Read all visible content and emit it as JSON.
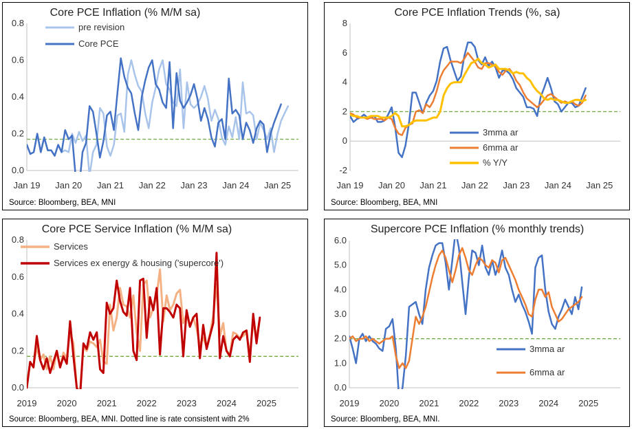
{
  "chart_data": [
    {
      "type": "line",
      "title": "Core PCE Inflation (% M/M sa)",
      "source": "Source: Bloomberg, BEA, MNI",
      "ylim": [
        0,
        0.8
      ],
      "yticks": [
        "0.0",
        "0.2",
        "0.4",
        "0.6",
        "0.8"
      ],
      "xlim": [
        2019.0,
        2025.5
      ],
      "xticks": [
        {
          "v": 2019.0,
          "label": "Jan 19"
        },
        {
          "v": 2020.0,
          "label": "Jan 20"
        },
        {
          "v": 2021.0,
          "label": "Jan 21"
        },
        {
          "v": 2022.0,
          "label": "Jan 22"
        },
        {
          "v": 2023.0,
          "label": "Jan 23"
        },
        {
          "v": 2024.0,
          "label": "Jan 24"
        },
        {
          "v": 2025.0,
          "label": "Jan 25"
        }
      ],
      "reference_line": 0.17,
      "legend": [
        "pre revision",
        "Core PCE"
      ],
      "series": [
        {
          "name": "pre revision",
          "color": "#a9c4eb",
          "width": 2.5,
          "start": 2019.0,
          "step": 0.08333,
          "values": [
            0.14,
            0.09,
            0.1,
            0.2,
            0.1,
            0.18,
            0.11,
            0.11,
            0.08,
            0.14,
            0.1,
            0.11,
            0.1,
            0.2,
            0.15,
            0.21,
            0.16,
            0.19,
            -0.03,
            0.1,
            0.14,
            0.34,
            0.31,
            0.13,
            0.08,
            0.14,
            0.3,
            0.31,
            0.21,
            0.52,
            0.6,
            0.52,
            0.46,
            0.43,
            0.31,
            0.23,
            0.37,
            0.45,
            0.55,
            0.6,
            0.47,
            0.44,
            0.37,
            0.35,
            0.55,
            0.23,
            0.48,
            0.36,
            0.34,
            0.36,
            0.4,
            0.46,
            0.39,
            0.27,
            0.33,
            0.28,
            0.18,
            0.14,
            0.24,
            0.18,
            0.29,
            0.17,
            0.48,
            0.31,
            0.32,
            0.3,
            0.17,
            0.26,
            0.22,
            0.17,
            0.23,
            0.1,
            0.2,
            0.27,
            0.31,
            0.35
          ]
        },
        {
          "name": "Core PCE",
          "color": "#4472c4",
          "width": 2.5,
          "start": 2019.0,
          "step": 0.08333,
          "values": [
            0.14,
            0.09,
            0.1,
            0.2,
            0.1,
            0.18,
            0.11,
            0.11,
            0.08,
            0.14,
            0.1,
            0.22,
            0.17,
            0.19,
            -0.03,
            -0.1,
            0.1,
            0.15,
            0.35,
            0.32,
            0.2,
            0.07,
            0.16,
            0.3,
            0.32,
            0.22,
            0.42,
            0.61,
            0.51,
            0.45,
            0.42,
            0.31,
            0.22,
            0.4,
            0.49,
            0.56,
            0.6,
            0.47,
            0.44,
            0.37,
            0.34,
            0.59,
            0.23,
            0.53,
            0.38,
            0.34,
            0.37,
            0.41,
            0.47,
            0.39,
            0.27,
            0.34,
            0.28,
            0.18,
            0.13,
            0.26,
            0.28,
            0.17,
            0.5,
            0.31,
            0.33,
            0.3,
            0.17,
            0.26,
            0.22,
            0.15,
            0.23,
            0.27,
            0.25,
            0.1,
            0.2,
            0.26,
            0.31,
            0.36
          ]
        }
      ]
    },
    {
      "type": "line",
      "title": "Core PCE Inflation Trends (%, sa)",
      "source": "Source: Bloomberg, BEA, MNI",
      "ylim": [
        -2,
        8
      ],
      "yticks": [
        "-2",
        "0",
        "2",
        "4",
        "6",
        "8"
      ],
      "xlim": [
        2019.0,
        2025.5
      ],
      "xticks": [
        {
          "v": 2019.0,
          "label": "Jan 19"
        },
        {
          "v": 2020.0,
          "label": "Jan 20"
        },
        {
          "v": 2021.0,
          "label": "Jan 21"
        },
        {
          "v": 2022.0,
          "label": "Jan 22"
        },
        {
          "v": 2023.0,
          "label": "Jan 23"
        },
        {
          "v": 2024.0,
          "label": "Jan 24"
        },
        {
          "v": 2025.0,
          "label": "Jan 25"
        }
      ],
      "reference_line": 2.0,
      "legend": [
        "3mma ar",
        "6mma ar",
        "% Y/Y"
      ],
      "series": [
        {
          "name": "3mma ar",
          "color": "#4472c4",
          "width": 2.5,
          "start": 2019.0,
          "step": 0.08333,
          "values": [
            1.7,
            1.3,
            1.5,
            1.6,
            1.8,
            1.6,
            1.6,
            1.7,
            1.3,
            1.3,
            1.4,
            1.8,
            2.3,
            1.0,
            -0.8,
            -1.1,
            -0.3,
            1.2,
            3.3,
            3.3,
            2.6,
            1.9,
            2.6,
            3.1,
            3.4,
            4.1,
            5.4,
            6.3,
            6.4,
            5.5,
            4.8,
            4.1,
            4.4,
            5.8,
            6.7,
            6.7,
            6.4,
            5.5,
            5.2,
            5.7,
            5.1,
            5.4,
            5.0,
            4.3,
            4.8,
            4.8,
            4.6,
            4.2,
            3.6,
            3.3,
            3.0,
            2.3,
            2.3,
            2.2,
            1.7,
            3.0,
            3.6,
            4.3,
            3.6,
            2.7,
            2.5,
            2.0,
            2.3,
            2.6,
            2.6,
            2.3,
            2.4,
            3.0,
            3.6
          ]
        },
        {
          "name": "6mma ar",
          "color": "#ed7d31",
          "width": 2.5,
          "start": 2019.0,
          "step": 0.08333,
          "values": [
            1.9,
            1.8,
            1.6,
            1.6,
            1.6,
            1.5,
            1.6,
            1.5,
            1.5,
            1.5,
            1.4,
            1.6,
            1.5,
            0.9,
            0.5,
            0.4,
            0.9,
            1.1,
            1.2,
            2.0,
            2.1,
            1.9,
            2.5,
            2.3,
            2.7,
            3.4,
            4.3,
            4.8,
            5.1,
            5.4,
            5.4,
            5.4,
            5.3,
            5.6,
            6.0,
            5.7,
            5.4,
            5.0,
            4.9,
            5.3,
            5.3,
            5.2,
            5.1,
            4.7,
            4.5,
            4.8,
            4.9,
            4.6,
            4.1,
            3.8,
            3.3,
            2.9,
            2.7,
            2.5,
            2.3,
            2.5,
            2.8,
            3.1,
            3.2,
            3.0,
            2.8,
            2.6,
            2.7,
            2.6,
            2.7,
            2.5,
            2.4,
            2.6,
            3.1
          ]
        },
        {
          "name": "% Y/Y",
          "color": "#ffc000",
          "width": 3,
          "start": 2019.0,
          "step": 0.08333,
          "values": [
            1.8,
            1.7,
            1.7,
            1.6,
            1.6,
            1.6,
            1.7,
            1.7,
            1.7,
            1.6,
            1.6,
            1.6,
            1.7,
            1.9,
            1.7,
            1.0,
            1.0,
            1.1,
            1.3,
            1.4,
            1.4,
            1.4,
            1.4,
            1.5,
            1.6,
            1.6,
            2.0,
            3.1,
            3.6,
            3.9,
            4.0,
            4.0,
            4.0,
            4.5,
            4.9,
            5.3,
            5.4,
            5.6,
            5.3,
            5.2,
            5.0,
            5.1,
            5.2,
            4.9,
            4.9,
            4.9,
            4.8,
            4.6,
            4.7,
            4.6,
            4.6,
            4.3,
            4.1,
            3.7,
            3.4,
            3.2,
            2.9,
            2.8,
            2.9,
            2.8,
            2.8,
            2.7,
            2.6,
            2.6,
            2.7,
            2.8,
            2.8,
            2.7,
            2.8
          ]
        }
      ]
    },
    {
      "type": "line",
      "title": "Core PCE Service Inflation (% M/M sa)",
      "source": "Source: Bloomberg, BEA, MNI. Dotted line is rate consistent with 2%",
      "ylim": [
        0,
        0.8
      ],
      "yticks": [
        "0.0",
        "0.2",
        "0.4",
        "0.6",
        "0.8"
      ],
      "xlim": [
        2019.0,
        2025.8
      ],
      "xticks": [
        {
          "v": 2019.0,
          "label": "2019"
        },
        {
          "v": 2020.0,
          "label": "2020"
        },
        {
          "v": 2021.0,
          "label": "2021"
        },
        {
          "v": 2022.0,
          "label": "2022"
        },
        {
          "v": 2023.0,
          "label": "2023"
        },
        {
          "v": 2024.0,
          "label": "2024"
        },
        {
          "v": 2025.0,
          "label": "2025"
        }
      ],
      "reference_line": 0.17,
      "legend": [
        "Services",
        "Services ex energy & housing ('supercore')"
      ],
      "series": [
        {
          "name": "Services",
          "color": "#f4b183",
          "width": 3,
          "start": 2019.0,
          "step": 0.08333,
          "values": [
            0.03,
            0.13,
            0.12,
            0.22,
            0.15,
            0.18,
            0.1,
            0.17,
            0.1,
            0.2,
            0.11,
            0.19,
            0.16,
            0.3,
            0.24,
            0.0,
            -0.02,
            0.22,
            0.2,
            0.25,
            0.24,
            0.22,
            0.26,
            0.14,
            0.13,
            0.45,
            0.31,
            0.38,
            0.54,
            0.45,
            0.44,
            0.38,
            0.5,
            0.3,
            0.2,
            0.56,
            0.58,
            0.38,
            0.43,
            0.5,
            0.64,
            0.36,
            0.5,
            0.42,
            0.45,
            0.51,
            0.53,
            0.35,
            0.4,
            0.33,
            0.38,
            0.32,
            0.23,
            0.27,
            0.22,
            0.29,
            0.39,
            0.56,
            0.28,
            0.35,
            0.2,
            0.18,
            0.3,
            0.29,
            0.27,
            0.28,
            0.3,
            0.18,
            0.35,
            0.28,
            0.37
          ]
        },
        {
          "name": "Services ex energy & housing ('supercore')",
          "color": "#c00000",
          "width": 3,
          "start": 2019.0,
          "step": 0.08333,
          "values": [
            0.0,
            0.14,
            0.11,
            0.28,
            0.15,
            0.1,
            0.16,
            0.08,
            0.14,
            0.2,
            0.11,
            0.17,
            0.13,
            0.36,
            0.17,
            0.0,
            -0.05,
            0.24,
            0.21,
            0.3,
            0.26,
            0.3,
            0.1,
            0.08,
            0.46,
            0.4,
            0.43,
            0.58,
            0.47,
            0.41,
            0.39,
            0.54,
            0.2,
            0.15,
            0.58,
            0.59,
            0.27,
            0.49,
            0.42,
            0.54,
            0.18,
            0.43,
            0.43,
            0.41,
            0.38,
            0.45,
            0.43,
            0.17,
            0.42,
            0.33,
            0.38,
            0.4,
            0.16,
            0.34,
            0.21,
            0.28,
            0.35,
            0.73,
            0.16,
            0.28,
            0.2,
            0.17,
            0.26,
            0.28,
            0.26,
            0.3,
            0.31,
            0.14,
            0.4,
            0.24,
            0.38
          ]
        }
      ]
    },
    {
      "type": "line",
      "title": "Supercore PCE Inflation (% monthly trends)",
      "source": "Source: Bloomberg, BEA, MNI.",
      "ylim": [
        0.0,
        6.0
      ],
      "yticks": [
        "0.0",
        "1.0",
        "2.0",
        "3.0",
        "4.0",
        "5.0",
        "6.0"
      ],
      "xlim": [
        2019.0,
        2025.8
      ],
      "xticks": [
        {
          "v": 2019.0,
          "label": "2019"
        },
        {
          "v": 2020.0,
          "label": "2020"
        },
        {
          "v": 2021.0,
          "label": "2021"
        },
        {
          "v": 2022.0,
          "label": "2022"
        },
        {
          "v": 2023.0,
          "label": "2023"
        },
        {
          "v": 2024.0,
          "label": "2024"
        },
        {
          "v": 2025.0,
          "label": "2025"
        }
      ],
      "reference_line": 2.0,
      "legend": [
        "3mma ar",
        "6mma ar"
      ],
      "series": [
        {
          "name": "3mma ar",
          "color": "#4472c4",
          "width": 2.5,
          "start": 2019.0,
          "step": 0.08333,
          "values": [
            2.1,
            1.6,
            1.0,
            2.0,
            2.2,
            1.9,
            2.1,
            1.9,
            1.8,
            1.6,
            1.5,
            2.4,
            2.5,
            2.8,
            1.6,
            -0.5,
            0.0,
            1.3,
            3.3,
            3.4,
            3.5,
            3.0,
            2.6,
            4.0,
            4.9,
            5.4,
            5.8,
            5.9,
            5.9,
            5.1,
            4.0,
            5.2,
            6.4,
            5.7,
            4.3,
            3.0,
            4.5,
            5.6,
            5.5,
            5.0,
            5.8,
            4.9,
            4.6,
            5.2,
            4.6,
            5.0,
            5.6,
            4.9,
            4.6,
            4.0,
            3.5,
            3.8,
            3.4,
            3.1,
            2.7,
            2.2,
            4.9,
            5.3,
            5.4,
            4.0,
            3.1,
            2.6,
            2.4,
            2.9,
            3.2,
            3.6,
            3.3,
            3.0,
            3.7,
            3.2,
            4.1
          ]
        },
        {
          "name": "6mma ar",
          "color": "#ed7d31",
          "width": 2.5,
          "start": 2019.0,
          "step": 0.08333,
          "values": [
            2.0,
            2.1,
            1.9,
            2.0,
            2.0,
            2.1,
            1.9,
            2.0,
            1.9,
            1.8,
            1.9,
            2.0,
            2.0,
            2.1,
            1.3,
            0.8,
            1.0,
            0.8,
            1.1,
            2.0,
            2.9,
            2.6,
            2.9,
            3.3,
            3.9,
            4.5,
            5.0,
            5.4,
            5.6,
            5.3,
            4.8,
            4.3,
            4.8,
            5.4,
            5.7,
            5.3,
            4.8,
            4.6,
            5.0,
            5.3,
            5.2,
            5.0,
            4.9,
            5.2,
            5.1,
            4.7,
            5.2,
            5.3,
            5.0,
            4.7,
            4.4,
            4.0,
            3.7,
            3.4,
            3.0,
            2.9,
            3.6,
            4.0,
            4.0,
            3.7,
            3.9,
            3.3,
            3.0,
            2.7,
            2.8,
            3.0,
            3.2,
            3.3,
            3.4,
            3.5,
            3.7
          ]
        }
      ]
    }
  ]
}
